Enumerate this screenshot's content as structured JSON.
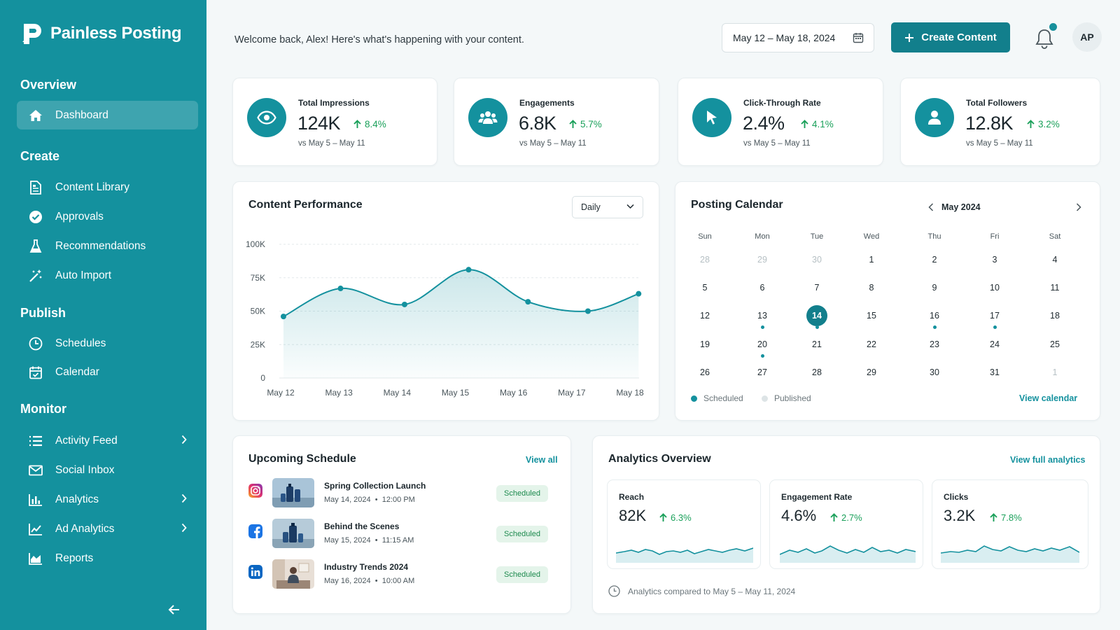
{
  "app": {
    "name": "Painless Posting"
  },
  "colors": {
    "accent": "#14919e",
    "sidebar": "#14919e",
    "positive": "#1aa05a"
  },
  "sidebar": {
    "sections": [
      {
        "title": "Overview"
      },
      {
        "title": "Create"
      },
      {
        "title": "Publish"
      },
      {
        "title": "Monitor"
      }
    ],
    "items": [
      {
        "label": "Dashboard",
        "icon": "home-icon",
        "active": true
      },
      {
        "label": "Content Library",
        "icon": "document-icon"
      },
      {
        "label": "Approvals",
        "icon": "check-circle-icon"
      },
      {
        "label": "Recommendations",
        "icon": "flask-icon"
      },
      {
        "label": "Auto Import",
        "icon": "magic-wand-icon"
      },
      {
        "label": "Schedules",
        "icon": "clock-icon"
      },
      {
        "label": "Calendar",
        "icon": "calendar-check-icon"
      },
      {
        "label": "Activity Feed",
        "icon": "list-icon",
        "expandable": true
      },
      {
        "label": "Social Inbox",
        "icon": "mail-icon"
      },
      {
        "label": "Analytics",
        "icon": "bar-chart-icon",
        "expandable": true
      },
      {
        "label": "Ad Analytics",
        "icon": "line-chart-icon",
        "expandable": true
      },
      {
        "label": "Reports",
        "icon": "area-chart-icon"
      }
    ],
    "collapse_icon": "arrow-left-icon"
  },
  "header": {
    "welcome": "Welcome back, Alex! Here's what's happening with your content.",
    "date_range": "May 12 – May 18, 2024",
    "create_label": "Create Content",
    "avatar_initials": "AP"
  },
  "kpis": [
    {
      "label": "Total Impressions",
      "value": "124K",
      "delta": "8.4%",
      "sub": "vs May 5 – May 11",
      "icon": "eye-icon"
    },
    {
      "label": "Engagements",
      "value": "6.8K",
      "delta": "5.7%",
      "sub": "vs May 5 – May 11",
      "icon": "users-icon"
    },
    {
      "label": "Click-Through Rate",
      "value": "2.4%",
      "delta": "4.1%",
      "sub": "vs May 5 – May 11",
      "icon": "cursor-icon"
    },
    {
      "label": "Total Followers",
      "value": "12.8K",
      "delta": "3.2%",
      "sub": "vs May 5 – May 11",
      "icon": "user-icon"
    }
  ],
  "performance": {
    "title": "Content Performance",
    "select_value": "Daily"
  },
  "chart_data": {
    "type": "area",
    "categories": [
      "May 12",
      "May 13",
      "May 14",
      "May 15",
      "May 16",
      "May 17",
      "May 18"
    ],
    "x_positions": [
      0,
      1,
      2,
      3,
      4,
      5,
      6
    ],
    "points": [
      {
        "x": 0.12,
        "y": 46000
      },
      {
        "x": 1.1,
        "y": 67000
      },
      {
        "x": 2.2,
        "y": 55000
      },
      {
        "x": 3.3,
        "y": 81000
      },
      {
        "x": 4.32,
        "y": 57000
      },
      {
        "x": 5.35,
        "y": 50000
      },
      {
        "x": 6.22,
        "y": 63000
      }
    ],
    "yticks": [
      "0",
      "25K",
      "50K",
      "75K",
      "100K"
    ],
    "ytick_values": [
      0,
      25000,
      50000,
      75000,
      100000
    ],
    "ylim": [
      0,
      100000
    ],
    "grid": true
  },
  "calendar": {
    "title": "Posting Calendar",
    "month": "May 2024",
    "days_of_week": [
      "Sun",
      "Mon",
      "Tue",
      "Wed",
      "Thu",
      "Fri",
      "Sat"
    ],
    "weeks": [
      [
        "28",
        "29",
        "30",
        "1",
        "2",
        "3",
        "4"
      ],
      [
        "5",
        "6",
        "7",
        "8",
        "9",
        "10",
        "11"
      ],
      [
        "12",
        "13",
        "14",
        "15",
        "16",
        "17",
        "18"
      ],
      [
        "19",
        "20",
        "21",
        "22",
        "23",
        "24",
        "25"
      ],
      [
        "26",
        "27",
        "28",
        "29",
        "30",
        "31",
        "1"
      ]
    ],
    "muted": [
      [
        0,
        0
      ],
      [
        0,
        1
      ],
      [
        0,
        2
      ],
      [
        4,
        6
      ]
    ],
    "today": [
      2,
      2
    ],
    "scheduled_dots": [
      [
        2,
        1
      ],
      [
        2,
        2
      ],
      [
        2,
        4
      ],
      [
        2,
        5
      ],
      [
        3,
        1
      ]
    ],
    "legend": {
      "scheduled": "Scheduled",
      "published": "Published"
    },
    "view_label": "View calendar"
  },
  "upcoming": {
    "title": "Upcoming Schedule",
    "view_all": "View all",
    "items": [
      {
        "network": "instagram-icon",
        "title": "Spring Collection Launch",
        "date": "May 14, 2024",
        "time": "12:00 PM",
        "status": "Scheduled"
      },
      {
        "network": "facebook-icon",
        "title": "Behind the Scenes",
        "date": "May 15, 2024",
        "time": "11:15 AM",
        "status": "Scheduled"
      },
      {
        "network": "linkedin-icon",
        "title": "Industry Trends 2024",
        "date": "May 16, 2024",
        "time": "10:00 AM",
        "status": "Scheduled"
      }
    ],
    "separator": "•"
  },
  "analytics": {
    "title": "Analytics Overview",
    "view_label": "View full analytics",
    "cards": [
      {
        "label": "Reach",
        "value": "82K",
        "delta": "6.3%"
      },
      {
        "label": "Engagement Rate",
        "value": "4.6%",
        "delta": "2.7%"
      },
      {
        "label": "Clicks",
        "value": "3.2K",
        "delta": "7.8%"
      }
    ],
    "note": "Analytics compared to May 5 – May 11, 2024"
  }
}
